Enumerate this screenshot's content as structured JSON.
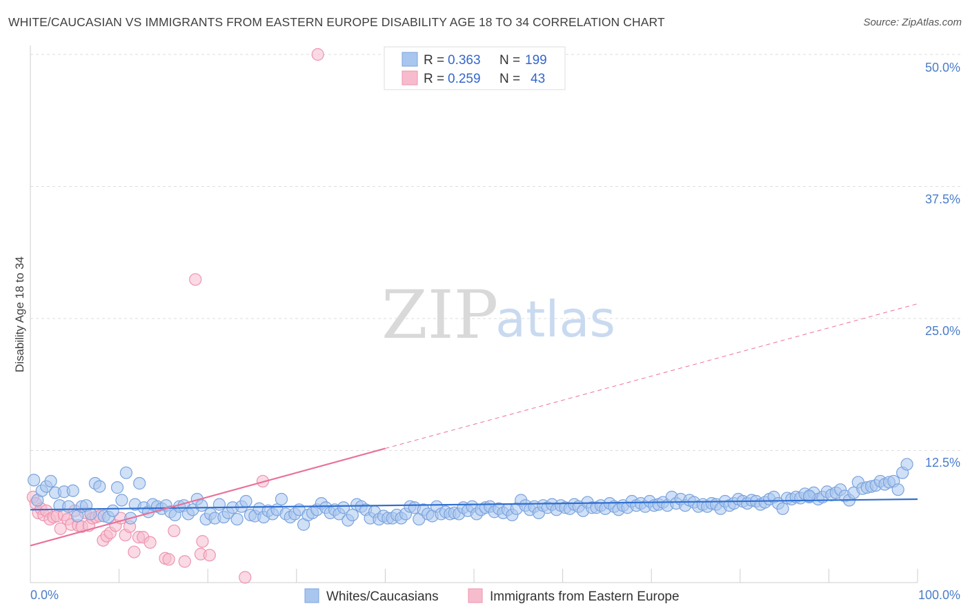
{
  "title": "WHITE/CAUCASIAN VS IMMIGRANTS FROM EASTERN EUROPE DISABILITY AGE 18 TO 34 CORRELATION CHART",
  "source": "Source: ZipAtlas.com",
  "watermark": {
    "zip": "ZIP",
    "atlas": "atlas"
  },
  "colors": {
    "blue_fill": "#a9c6ef",
    "blue_stroke": "#7aa3dd",
    "blue_line": "#2f6fcf",
    "pink_fill": "#f6bccd",
    "pink_stroke": "#ee93ae",
    "pink_line": "#e8719a",
    "tick_text": "#4a7cc9",
    "grid": "#dddddd"
  },
  "legend": {
    "rows": [
      {
        "r_label": "R =",
        "r_value": "0.363",
        "n_label": "N =",
        "n_value": "199"
      },
      {
        "r_label": "R =",
        "r_value": "0.259",
        "n_label": "N =",
        "n_value": "43"
      }
    ]
  },
  "chart_data": {
    "type": "scatter",
    "xlabel": "",
    "ylabel": "Disability Age 18 to 34",
    "xlim": [
      0,
      100
    ],
    "ylim": [
      0,
      50
    ],
    "x_tick_labels": [
      "0.0%",
      "100.0%"
    ],
    "y_ticks": [
      12.5,
      25.0,
      37.5,
      50.0
    ],
    "y_tick_labels": [
      "12.5%",
      "25.0%",
      "37.5%",
      "50.0%"
    ],
    "grid": "horizontal dashed",
    "legend_position": "top-center",
    "series": [
      {
        "name": "Whites/Caucasians",
        "R": 0.363,
        "N": 199,
        "trend": {
          "x0": 0,
          "y0": 6.9,
          "x1": 100,
          "y1": 7.9
        },
        "points": [
          [
            0.4,
            9.7
          ],
          [
            0.8,
            7.8
          ],
          [
            1.3,
            8.7
          ],
          [
            1.8,
            9.1
          ],
          [
            2.3,
            9.6
          ],
          [
            2.8,
            8.5
          ],
          [
            3.3,
            7.3
          ],
          [
            3.8,
            8.6
          ],
          [
            4.3,
            7.2
          ],
          [
            4.8,
            8.7
          ],
          [
            5.3,
            6.3
          ],
          [
            5.8,
            7.2
          ],
          [
            6.3,
            7.3
          ],
          [
            6.8,
            6.5
          ],
          [
            7.3,
            9.4
          ],
          [
            7.8,
            9.1
          ],
          [
            8.3,
            6.3
          ],
          [
            8.8,
            6.2
          ],
          [
            9.3,
            6.8
          ],
          [
            9.8,
            9.0
          ],
          [
            10.3,
            7.8
          ],
          [
            10.8,
            10.4
          ],
          [
            11.3,
            6.1
          ],
          [
            11.8,
            7.4
          ],
          [
            12.3,
            9.4
          ],
          [
            12.8,
            7.1
          ],
          [
            13.3,
            6.7
          ],
          [
            13.8,
            7.4
          ],
          [
            14.3,
            7.2
          ],
          [
            14.8,
            7.0
          ],
          [
            15.3,
            7.3
          ],
          [
            15.8,
            6.7
          ],
          [
            16.3,
            6.4
          ],
          [
            16.8,
            7.2
          ],
          [
            17.3,
            7.3
          ],
          [
            17.8,
            6.5
          ],
          [
            18.3,
            6.9
          ],
          [
            18.8,
            7.9
          ],
          [
            19.3,
            7.3
          ],
          [
            19.8,
            6.0
          ],
          [
            20.3,
            6.5
          ],
          [
            20.8,
            6.1
          ],
          [
            21.3,
            7.4
          ],
          [
            21.8,
            6.2
          ],
          [
            22.3,
            6.6
          ],
          [
            22.8,
            7.1
          ],
          [
            23.3,
            6.0
          ],
          [
            23.8,
            7.2
          ],
          [
            24.3,
            7.7
          ],
          [
            24.8,
            6.4
          ],
          [
            25.3,
            6.3
          ],
          [
            25.8,
            7.0
          ],
          [
            26.3,
            6.2
          ],
          [
            26.8,
            6.8
          ],
          [
            27.3,
            6.5
          ],
          [
            27.8,
            6.9
          ],
          [
            28.3,
            7.9
          ],
          [
            28.8,
            6.5
          ],
          [
            29.3,
            6.2
          ],
          [
            29.8,
            6.5
          ],
          [
            30.3,
            6.9
          ],
          [
            30.8,
            5.5
          ],
          [
            31.3,
            6.4
          ],
          [
            31.8,
            6.6
          ],
          [
            32.3,
            6.9
          ],
          [
            32.8,
            7.5
          ],
          [
            33.3,
            7.1
          ],
          [
            33.8,
            6.6
          ],
          [
            34.3,
            6.9
          ],
          [
            34.8,
            6.5
          ],
          [
            35.3,
            7.1
          ],
          [
            35.8,
            5.9
          ],
          [
            36.3,
            6.4
          ],
          [
            36.8,
            7.4
          ],
          [
            37.3,
            7.2
          ],
          [
            37.8,
            6.9
          ],
          [
            38.3,
            6.1
          ],
          [
            38.8,
            6.7
          ],
          [
            39.3,
            6.0
          ],
          [
            39.8,
            6.3
          ],
          [
            40.3,
            6.1
          ],
          [
            40.8,
            6.1
          ],
          [
            41.3,
            6.4
          ],
          [
            41.8,
            6.1
          ],
          [
            42.3,
            6.5
          ],
          [
            42.8,
            7.2
          ],
          [
            43.3,
            7.1
          ],
          [
            43.8,
            6.0
          ],
          [
            44.3,
            6.9
          ],
          [
            44.8,
            6.5
          ],
          [
            45.3,
            6.3
          ],
          [
            45.8,
            7.2
          ],
          [
            46.3,
            6.5
          ],
          [
            46.8,
            6.7
          ],
          [
            47.3,
            6.5
          ],
          [
            47.8,
            6.6
          ],
          [
            48.3,
            6.5
          ],
          [
            48.8,
            7.1
          ],
          [
            49.3,
            6.8
          ],
          [
            49.8,
            7.2
          ],
          [
            50.3,
            6.5
          ],
          [
            50.8,
            6.9
          ],
          [
            51.3,
            7.1
          ],
          [
            51.8,
            7.2
          ],
          [
            52.3,
            6.7
          ],
          [
            52.8,
            7.0
          ],
          [
            53.3,
            6.6
          ],
          [
            53.8,
            6.9
          ],
          [
            54.3,
            6.4
          ],
          [
            54.8,
            7.0
          ],
          [
            55.3,
            7.8
          ],
          [
            55.8,
            7.3
          ],
          [
            56.3,
            6.9
          ],
          [
            56.8,
            7.2
          ],
          [
            57.3,
            6.6
          ],
          [
            57.8,
            7.3
          ],
          [
            58.3,
            7.1
          ],
          [
            58.8,
            7.4
          ],
          [
            59.3,
            6.9
          ],
          [
            59.8,
            7.3
          ],
          [
            60.3,
            7.1
          ],
          [
            60.8,
            7.0
          ],
          [
            61.3,
            7.4
          ],
          [
            61.8,
            7.2
          ],
          [
            62.3,
            6.8
          ],
          [
            62.8,
            7.6
          ],
          [
            63.3,
            7.1
          ],
          [
            63.8,
            7.1
          ],
          [
            64.3,
            7.3
          ],
          [
            64.8,
            7.0
          ],
          [
            65.3,
            7.5
          ],
          [
            65.8,
            7.2
          ],
          [
            66.3,
            6.9
          ],
          [
            66.8,
            7.3
          ],
          [
            67.3,
            7.1
          ],
          [
            67.8,
            7.7
          ],
          [
            68.3,
            7.3
          ],
          [
            68.8,
            7.5
          ],
          [
            69.3,
            7.2
          ],
          [
            69.8,
            7.7
          ],
          [
            70.3,
            7.3
          ],
          [
            70.8,
            7.4
          ],
          [
            71.3,
            7.6
          ],
          [
            71.8,
            7.3
          ],
          [
            72.3,
            8.1
          ],
          [
            72.8,
            7.5
          ],
          [
            73.3,
            7.9
          ],
          [
            73.8,
            7.3
          ],
          [
            74.3,
            7.8
          ],
          [
            74.8,
            7.6
          ],
          [
            75.3,
            7.2
          ],
          [
            75.8,
            7.4
          ],
          [
            76.3,
            7.2
          ],
          [
            76.8,
            7.5
          ],
          [
            77.3,
            7.4
          ],
          [
            77.8,
            7.0
          ],
          [
            78.3,
            7.7
          ],
          [
            78.8,
            7.3
          ],
          [
            79.3,
            7.5
          ],
          [
            79.8,
            7.9
          ],
          [
            80.3,
            7.7
          ],
          [
            80.8,
            7.5
          ],
          [
            81.3,
            7.8
          ],
          [
            81.8,
            7.7
          ],
          [
            82.3,
            7.4
          ],
          [
            82.8,
            7.6
          ],
          [
            83.3,
            7.9
          ],
          [
            83.8,
            8.1
          ],
          [
            84.3,
            7.5
          ],
          [
            84.8,
            7.0
          ],
          [
            85.3,
            8.0
          ],
          [
            85.8,
            7.9
          ],
          [
            86.3,
            8.1
          ],
          [
            86.8,
            8.0
          ],
          [
            87.3,
            8.4
          ],
          [
            87.8,
            8.1
          ],
          [
            88.3,
            8.5
          ],
          [
            88.8,
            7.9
          ],
          [
            89.3,
            8.1
          ],
          [
            89.8,
            8.6
          ],
          [
            90.3,
            8.3
          ],
          [
            90.8,
            8.5
          ],
          [
            91.3,
            8.8
          ],
          [
            91.8,
            8.2
          ],
          [
            92.3,
            7.8
          ],
          [
            92.8,
            8.5
          ],
          [
            93.3,
            9.5
          ],
          [
            93.8,
            8.9
          ],
          [
            94.3,
            9.0
          ],
          [
            94.8,
            9.1
          ],
          [
            95.3,
            9.2
          ],
          [
            95.8,
            9.6
          ],
          [
            96.3,
            9.3
          ],
          [
            96.8,
            9.5
          ],
          [
            97.3,
            9.6
          ],
          [
            97.8,
            8.8
          ],
          [
            98.3,
            10.4
          ],
          [
            98.8,
            11.2
          ],
          [
            87.8,
            8.2
          ]
        ]
      },
      {
        "name": "Immigrants from Eastern Europe",
        "R": 0.259,
        "N": 43,
        "trend": {
          "x0": 0,
          "y0": 3.5,
          "x1": 40,
          "y1": 12.7,
          "dashed_to_x": 100,
          "dashed_to_y": 26.4
        },
        "points": [
          [
            0.3,
            8.1
          ],
          [
            0.6,
            7.5
          ],
          [
            0.9,
            6.6
          ],
          [
            1.2,
            7.0
          ],
          [
            1.5,
            6.4
          ],
          [
            1.8,
            6.8
          ],
          [
            2.2,
            6.0
          ],
          [
            2.6,
            6.2
          ],
          [
            3.0,
            6.3
          ],
          [
            3.4,
            5.1
          ],
          [
            3.8,
            6.4
          ],
          [
            4.2,
            6.0
          ],
          [
            4.6,
            5.5
          ],
          [
            5.0,
            6.8
          ],
          [
            5.4,
            5.4
          ],
          [
            5.8,
            5.3
          ],
          [
            6.2,
            6.6
          ],
          [
            6.6,
            5.4
          ],
          [
            7.0,
            6.1
          ],
          [
            7.4,
            6.2
          ],
          [
            7.8,
            6.3
          ],
          [
            8.2,
            4.0
          ],
          [
            8.6,
            4.4
          ],
          [
            9.0,
            4.7
          ],
          [
            9.6,
            5.4
          ],
          [
            10.2,
            6.1
          ],
          [
            10.7,
            4.5
          ],
          [
            11.2,
            5.3
          ],
          [
            11.7,
            2.9
          ],
          [
            12.2,
            4.3
          ],
          [
            12.7,
            4.3
          ],
          [
            13.5,
            3.8
          ],
          [
            15.2,
            2.3
          ],
          [
            15.6,
            2.2
          ],
          [
            16.2,
            4.9
          ],
          [
            17.4,
            2.0
          ],
          [
            18.6,
            28.7
          ],
          [
            19.4,
            3.9
          ],
          [
            19.2,
            2.7
          ],
          [
            20.2,
            2.6
          ],
          [
            24.2,
            0.5
          ],
          [
            26.2,
            9.6
          ],
          [
            32.4,
            50.0
          ]
        ]
      }
    ]
  },
  "bottom_legend": [
    {
      "label": "Whites/Caucasians"
    },
    {
      "label": "Immigrants from Eastern Europe"
    }
  ]
}
